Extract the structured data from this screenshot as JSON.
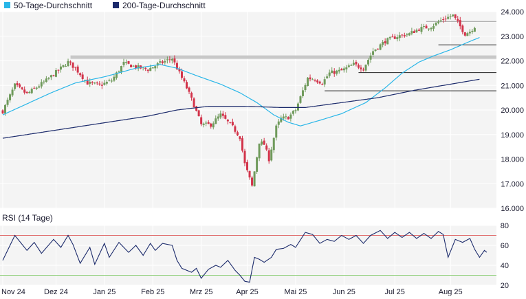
{
  "legend": {
    "ma50_label": "50-Tage-Durchschnitt",
    "ma200_label": "200-Tage-Durchschnitt"
  },
  "colors": {
    "ma50": "#29b6e8",
    "ma200": "#1b2a6b",
    "up_candle": "#6f9a5b",
    "down_candle": "#d2334a",
    "rsi_line": "#1b2a6b",
    "rsi_upper": "#e07070",
    "rsi_lower": "#8fcf7a",
    "plot_bg": "#f4f4f4",
    "grid": "#ffffff",
    "resistance_band": "#c8c8c8",
    "level_line": "#222222"
  },
  "chart_data": [
    {
      "type": "candlestick",
      "title": "",
      "xlabel": "",
      "ylabel": "",
      "ylim": [
        16000,
        24000
      ],
      "y_ticks": [
        "16.000",
        "17.000",
        "18.000",
        "19.000",
        "20.000",
        "21.000",
        "22.000",
        "23.000",
        "24.000"
      ],
      "x_ticks": [
        "Nov 24",
        "Dez 24",
        "Jan 25",
        "Feb 25",
        "Mrz 25",
        "Apr 25",
        "Mai 25",
        "Jun 25",
        "Jul 25",
        "Aug 25"
      ],
      "x_tick_positions": [
        0,
        22,
        42,
        62,
        82,
        101,
        121,
        141,
        162,
        185
      ],
      "n_days": 200,
      "grid": true,
      "legend_position": "top-left",
      "series": [
        {
          "name": "50-Tage-Durchschnitt",
          "kind": "line",
          "points": [
            [
              0,
              19800
            ],
            [
              10,
              20250
            ],
            [
              20,
              20700
            ],
            [
              30,
              21100
            ],
            [
              42,
              21350
            ],
            [
              55,
              21700
            ],
            [
              65,
              21850
            ],
            [
              72,
              21700
            ],
            [
              80,
              21400
            ],
            [
              90,
              21050
            ],
            [
              98,
              20700
            ],
            [
              105,
              20300
            ],
            [
              112,
              19800
            ],
            [
              118,
              19500
            ],
            [
              123,
              19350
            ],
            [
              130,
              19550
            ],
            [
              140,
              19850
            ],
            [
              150,
              20300
            ],
            [
              158,
              20900
            ],
            [
              165,
              21500
            ],
            [
              172,
              21950
            ],
            [
              178,
              22200
            ],
            [
              185,
              22450
            ],
            [
              192,
              22750
            ],
            [
              197,
              22950
            ]
          ]
        },
        {
          "name": "200-Tage-Durchschnitt",
          "kind": "line",
          "points": [
            [
              0,
              18850
            ],
            [
              20,
              19150
            ],
            [
              40,
              19450
            ],
            [
              60,
              19750
            ],
            [
              72,
              20000
            ],
            [
              85,
              20150
            ],
            [
              100,
              20150
            ],
            [
              115,
              20100
            ],
            [
              125,
              20100
            ],
            [
              140,
              20300
            ],
            [
              155,
              20500
            ],
            [
              170,
              20800
            ],
            [
              185,
              21050
            ],
            [
              197,
              21250
            ]
          ]
        }
      ],
      "levels": [
        {
          "y": 22150,
          "x_from": 28,
          "x_to": 200,
          "style": "band"
        },
        {
          "y": 23600,
          "x_from": 175,
          "x_to": 200,
          "style": "thin"
        },
        {
          "y": 22650,
          "x_from": 180,
          "x_to": 200,
          "style": "line"
        },
        {
          "y": 21520,
          "x_from": 147,
          "x_to": 200,
          "style": "line"
        },
        {
          "y": 20780,
          "x_from": 133,
          "x_to": 200,
          "style": "line"
        }
      ],
      "candle_anchors": [
        [
          0,
          19950
        ],
        [
          5,
          21000
        ],
        [
          10,
          20650
        ],
        [
          18,
          21200
        ],
        [
          27,
          21950
        ],
        [
          30,
          21700
        ],
        [
          35,
          21100
        ],
        [
          40,
          21000
        ],
        [
          45,
          21200
        ],
        [
          50,
          21900
        ],
        [
          55,
          21750
        ],
        [
          60,
          21650
        ],
        [
          65,
          21900
        ],
        [
          70,
          22100
        ],
        [
          72,
          21700
        ],
        [
          76,
          20900
        ],
        [
          79,
          20200
        ],
        [
          82,
          19400
        ],
        [
          86,
          19400
        ],
        [
          90,
          19800
        ],
        [
          95,
          19300
        ],
        [
          98,
          18900
        ],
        [
          100,
          17800
        ],
        [
          103,
          16900
        ],
        [
          106,
          18700
        ],
        [
          108,
          18600
        ],
        [
          110,
          18000
        ],
        [
          113,
          19300
        ],
        [
          115,
          19650
        ],
        [
          118,
          19700
        ],
        [
          121,
          20000
        ],
        [
          126,
          21300
        ],
        [
          129,
          21250
        ],
        [
          132,
          21100
        ],
        [
          135,
          21500
        ],
        [
          140,
          21600
        ],
        [
          145,
          21850
        ],
        [
          149,
          21700
        ],
        [
          153,
          22400
        ],
        [
          158,
          22800
        ],
        [
          163,
          23000
        ],
        [
          168,
          23100
        ],
        [
          172,
          23300
        ],
        [
          177,
          23400
        ],
        [
          182,
          23700
        ],
        [
          186,
          23850
        ],
        [
          189,
          23400
        ],
        [
          191,
          23100
        ],
        [
          193,
          23200
        ],
        [
          195,
          23400
        ]
      ],
      "candle_volatility": 150
    },
    {
      "type": "line",
      "title": "RSI (14 Tage)",
      "xlabel": "",
      "ylabel": "",
      "ylim": [
        20,
        80
      ],
      "y_ticks": [
        "20",
        "40",
        "60",
        "80"
      ],
      "reference_lines": [
        70,
        30
      ],
      "grid": true,
      "series": [
        {
          "name": "",
          "anchors": [
            [
              0,
              45
            ],
            [
              5,
              70
            ],
            [
              10,
              55
            ],
            [
              13,
              63
            ],
            [
              16,
              52
            ],
            [
              21,
              66
            ],
            [
              24,
              58
            ],
            [
              27,
              70
            ],
            [
              29,
              61
            ],
            [
              32,
              42
            ],
            [
              36,
              58
            ],
            [
              38,
              41
            ],
            [
              42,
              62
            ],
            [
              44,
              48
            ],
            [
              48,
              63
            ],
            [
              52,
              53
            ],
            [
              55,
              60
            ],
            [
              58,
              50
            ],
            [
              61,
              62
            ],
            [
              63,
              55
            ],
            [
              66,
              62
            ],
            [
              70,
              60
            ],
            [
              72,
              45
            ],
            [
              74,
              37
            ],
            [
              78,
              33
            ],
            [
              80,
              37
            ],
            [
              82,
              27
            ],
            [
              85,
              36
            ],
            [
              88,
              40
            ],
            [
              90,
              38
            ],
            [
              93,
              45
            ],
            [
              96,
              35
            ],
            [
              98,
              30
            ],
            [
              100,
              24
            ],
            [
              102,
              23
            ],
            [
              104,
              48
            ],
            [
              106,
              46
            ],
            [
              108,
              43
            ],
            [
              111,
              48
            ],
            [
              113,
              56
            ],
            [
              116,
              57
            ],
            [
              119,
              61
            ],
            [
              121,
              58
            ],
            [
              125,
              73
            ],
            [
              128,
              71
            ],
            [
              131,
              62
            ],
            [
              134,
              66
            ],
            [
              137,
              64
            ],
            [
              140,
              70
            ],
            [
              143,
              66
            ],
            [
              146,
              70
            ],
            [
              149,
              62
            ],
            [
              152,
              70
            ],
            [
              156,
              75
            ],
            [
              159,
              67
            ],
            [
              162,
              73
            ],
            [
              165,
              68
            ],
            [
              168,
              73
            ],
            [
              171,
              67
            ],
            [
              174,
              72
            ],
            [
              177,
              67
            ],
            [
              180,
              74
            ],
            [
              182,
              71
            ],
            [
              184,
              48
            ],
            [
              187,
              66
            ],
            [
              190,
              63
            ],
            [
              193,
              67
            ],
            [
              195,
              56
            ],
            [
              197,
              48
            ],
            [
              199,
              55
            ],
            [
              200,
              53
            ]
          ]
        }
      ]
    }
  ]
}
